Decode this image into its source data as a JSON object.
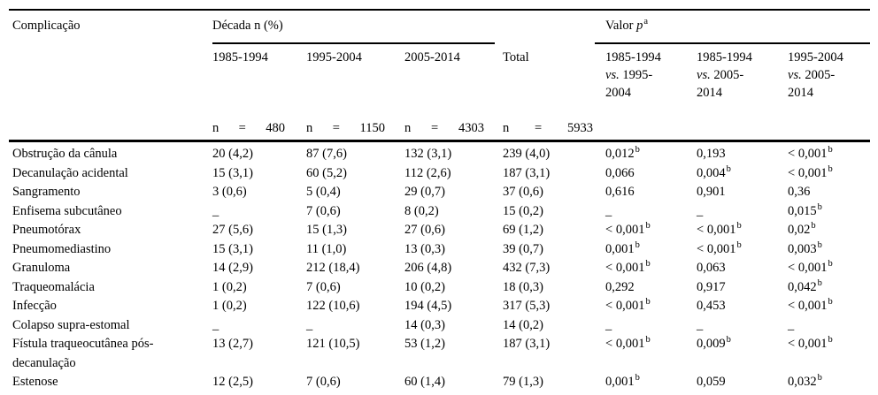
{
  "table": {
    "header": {
      "complication_label": "Complicação",
      "decade_group_label": "Década n (%)",
      "pvalue_group": {
        "prefix": "Valor ",
        "p_symbol": "p",
        "superscript": "a"
      },
      "decade_columns": [
        "1985-1994",
        "1995-2004",
        "2005-2014"
      ],
      "total_label": "Total",
      "pvalue_columns": [
        {
          "line1": "1985-1994",
          "vs": "vs.",
          "line2": "1995-",
          "line3": "2004"
        },
        {
          "line1": "1985-1994",
          "vs": "vs.",
          "line2": "2005-",
          "line3": "2014"
        },
        {
          "line1": "1995-2004",
          "vs": "vs.",
          "line2": "2005-",
          "line3": "2014"
        }
      ],
      "sample_sizes": [
        {
          "n": "n",
          "eq": "=",
          "value": "480"
        },
        {
          "n": "n",
          "eq": "=",
          "value": "1150"
        },
        {
          "n": "n",
          "eq": "=",
          "value": "4303"
        },
        {
          "n": "n",
          "eq": "=",
          "value": "5933"
        }
      ]
    },
    "rows": [
      {
        "label": "Obstrução da cânula",
        "counts": [
          "20 (4,2)",
          "87 (7,6)",
          "132 (3,1)",
          "239 (4,0)"
        ],
        "pvalues": [
          {
            "v": "0,012",
            "s": "b"
          },
          {
            "v": "0,193",
            "s": ""
          },
          {
            "v": "< 0,001",
            "s": "b"
          }
        ]
      },
      {
        "label": "Decanulação acidental",
        "counts": [
          "15 (3,1)",
          "60 (5,2)",
          "112 (2,6)",
          "187 (3,1)"
        ],
        "pvalues": [
          {
            "v": "0,066",
            "s": ""
          },
          {
            "v": "0,004",
            "s": "b"
          },
          {
            "v": "< 0,001",
            "s": "b"
          }
        ]
      },
      {
        "label": "Sangramento",
        "counts": [
          "3 (0,6)",
          "5 (0,4)",
          "29 (0,7)",
          "37 (0,6)"
        ],
        "pvalues": [
          {
            "v": "0,616",
            "s": ""
          },
          {
            "v": "0,901",
            "s": ""
          },
          {
            "v": "0,36",
            "s": ""
          }
        ]
      },
      {
        "label": "Enfisema subcutâneo",
        "counts": [
          "_",
          "7 (0,6)",
          "8 (0,2)",
          "15 (0,2)"
        ],
        "pvalues": [
          {
            "v": "_",
            "s": ""
          },
          {
            "v": "_",
            "s": ""
          },
          {
            "v": "0,015",
            "s": "b"
          }
        ]
      },
      {
        "label": "Pneumotórax",
        "counts": [
          "27 (5,6)",
          "15 (1,3)",
          "27 (0,6)",
          "69 (1,2)"
        ],
        "pvalues": [
          {
            "v": "< 0,001",
            "s": "b"
          },
          {
            "v": "< 0,001",
            "s": "b"
          },
          {
            "v": "0,02",
            "s": "b"
          }
        ]
      },
      {
        "label": "Pneumomediastino",
        "counts": [
          "15 (3,1)",
          "11 (1,0)",
          "13 (0,3)",
          "39 (0,7)"
        ],
        "pvalues": [
          {
            "v": "0,001",
            "s": "b"
          },
          {
            "v": "< 0,001",
            "s": "b"
          },
          {
            "v": "0,003",
            "s": "b"
          }
        ]
      },
      {
        "label": "Granuloma",
        "counts": [
          "14 (2,9)",
          "212 (18,4)",
          "206 (4,8)",
          "432 (7,3)"
        ],
        "pvalues": [
          {
            "v": "< 0,001",
            "s": "b"
          },
          {
            "v": "0,063",
            "s": ""
          },
          {
            "v": "< 0,001",
            "s": "b"
          }
        ]
      },
      {
        "label": "Traqueomalácia",
        "counts": [
          "1 (0,2)",
          "7 (0,6)",
          "10 (0,2)",
          "18 (0,3)"
        ],
        "pvalues": [
          {
            "v": "0,292",
            "s": ""
          },
          {
            "v": "0,917",
            "s": ""
          },
          {
            "v": "0,042",
            "s": "b"
          }
        ]
      },
      {
        "label": "Infecção",
        "counts": [
          "1 (0,2)",
          "122 (10,6)",
          "194 (4,5)",
          "317 (5,3)"
        ],
        "pvalues": [
          {
            "v": "< 0,001",
            "s": "b"
          },
          {
            "v": "0,453",
            "s": ""
          },
          {
            "v": "< 0,001",
            "s": "b"
          }
        ]
      },
      {
        "label": "Colapso supra-estomal",
        "counts": [
          "_",
          "_",
          "14 (0,3)",
          "14 (0,2)"
        ],
        "pvalues": [
          {
            "v": "_",
            "s": ""
          },
          {
            "v": "_",
            "s": ""
          },
          {
            "v": "_",
            "s": ""
          }
        ]
      },
      {
        "label": "Fístula traqueocutânea pós-decanulação",
        "counts": [
          "13 (2,7)",
          "121 (10,5)",
          "53 (1,2)",
          "187 (3,1)"
        ],
        "pvalues": [
          {
            "v": "< 0,001",
            "s": "b"
          },
          {
            "v": "0,009",
            "s": "b"
          },
          {
            "v": "< 0,001",
            "s": "b"
          }
        ]
      },
      {
        "label": "Estenose",
        "counts": [
          "12 (2,5)",
          "7 (0,6)",
          "60 (1,4)",
          "79 (1,3)"
        ],
        "pvalues": [
          {
            "v": "0,001",
            "s": "b"
          },
          {
            "v": "0,059",
            "s": ""
          },
          {
            "v": "0,032",
            "s": "b"
          }
        ]
      }
    ]
  }
}
